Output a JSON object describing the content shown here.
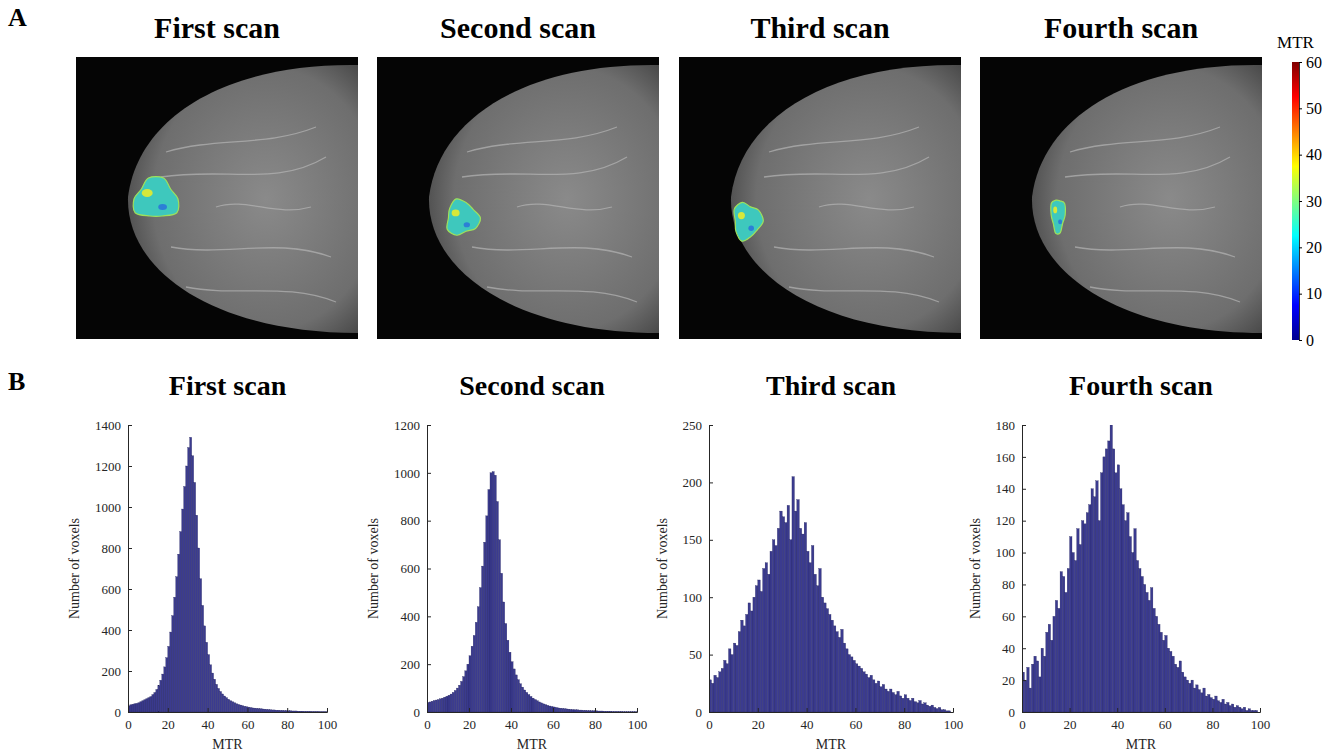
{
  "panel_a": {
    "label": "A",
    "titles": [
      "First scan",
      "Second scan",
      "Third scan",
      "Fourth scan"
    ],
    "colorbar": {
      "title": "MTR",
      "range": [
        0,
        60
      ],
      "ticks": [
        0,
        10,
        20,
        30,
        40,
        50,
        60
      ]
    }
  },
  "panel_b": {
    "label": "B"
  },
  "chart_data": [
    {
      "type": "histogram",
      "title": "First scan",
      "x_label": "MTR",
      "y_label": "Number of voxels",
      "color": "#3b3b8f",
      "xlim": [
        0,
        100
      ],
      "ylim": [
        0,
        1400
      ],
      "xticks": [
        0,
        20,
        40,
        60,
        80,
        100
      ],
      "yticks": [
        0,
        200,
        400,
        600,
        800,
        1000,
        1200,
        1400
      ],
      "bins": [
        0,
        1,
        2,
        3,
        4,
        5,
        6,
        7,
        8,
        9,
        10,
        11,
        12,
        13,
        14,
        15,
        16,
        17,
        18,
        19,
        20,
        21,
        22,
        23,
        24,
        25,
        26,
        27,
        28,
        29,
        30,
        31,
        32,
        33,
        34,
        35,
        36,
        37,
        38,
        39,
        40,
        41,
        42,
        43,
        44,
        45,
        46,
        47,
        48,
        49,
        50,
        51,
        52,
        53,
        54,
        55,
        56,
        57,
        58,
        59,
        60,
        61,
        62,
        63,
        64,
        65,
        66,
        67,
        68,
        69,
        70,
        71,
        72,
        73,
        74,
        75,
        76,
        77,
        78,
        79,
        80,
        81,
        82,
        83,
        84,
        85,
        86,
        87,
        88,
        89,
        90,
        91,
        92,
        93,
        94,
        95,
        96,
        97,
        98,
        99,
        100
      ],
      "values": [
        30,
        35,
        38,
        40,
        42,
        45,
        50,
        55,
        60,
        65,
        70,
        75,
        85,
        95,
        110,
        130,
        155,
        185,
        220,
        265,
        320,
        390,
        470,
        560,
        660,
        770,
        880,
        990,
        1100,
        1200,
        1290,
        1340,
        1250,
        1120,
        960,
        800,
        650,
        520,
        420,
        340,
        280,
        230,
        190,
        160,
        135,
        115,
        100,
        88,
        78,
        70,
        62,
        55,
        50,
        45,
        40,
        37,
        34,
        31,
        28,
        26,
        24,
        22,
        20,
        19,
        18,
        17,
        16,
        15,
        14,
        13,
        12,
        11,
        10,
        10,
        9,
        9,
        8,
        8,
        7,
        7,
        6,
        6,
        5,
        5,
        5,
        4,
        4,
        4,
        3,
        3,
        3,
        3,
        2,
        2,
        2,
        2,
        1,
        1,
        1,
        1
      ]
    },
    {
      "type": "histogram",
      "title": "Second scan",
      "x_label": "MTR",
      "y_label": "Number of voxels",
      "color": "#3b3b8f",
      "xlim": [
        0,
        100
      ],
      "ylim": [
        0,
        1200
      ],
      "xticks": [
        0,
        20,
        40,
        60,
        80,
        100
      ],
      "yticks": [
        0,
        200,
        400,
        600,
        800,
        1000,
        1200
      ],
      "bins": [
        0,
        1,
        2,
        3,
        4,
        5,
        6,
        7,
        8,
        9,
        10,
        11,
        12,
        13,
        14,
        15,
        16,
        17,
        18,
        19,
        20,
        21,
        22,
        23,
        24,
        25,
        26,
        27,
        28,
        29,
        30,
        31,
        32,
        33,
        34,
        35,
        36,
        37,
        38,
        39,
        40,
        41,
        42,
        43,
        44,
        45,
        46,
        47,
        48,
        49,
        50,
        51,
        52,
        53,
        54,
        55,
        56,
        57,
        58,
        59,
        60,
        61,
        62,
        63,
        64,
        65,
        66,
        67,
        68,
        69,
        70,
        71,
        72,
        73,
        74,
        75,
        76,
        77,
        78,
        79,
        80,
        81,
        82,
        83,
        84,
        85,
        86,
        87,
        88,
        89,
        90,
        91,
        92,
        93,
        94,
        95,
        96,
        97,
        98,
        99,
        100
      ],
      "values": [
        40,
        42,
        45,
        48,
        50,
        52,
        55,
        58,
        62,
        66,
        70,
        75,
        82,
        90,
        100,
        112,
        128,
        148,
        172,
        200,
        235,
        275,
        320,
        375,
        440,
        520,
        610,
        710,
        820,
        930,
        1000,
        1005,
        990,
        880,
        720,
        580,
        460,
        370,
        300,
        250,
        210,
        180,
        155,
        135,
        118,
        104,
        92,
        82,
        73,
        65,
        58,
        52,
        47,
        42,
        38,
        34,
        31,
        28,
        25,
        23,
        21,
        19,
        17,
        16,
        15,
        14,
        13,
        12,
        11,
        10,
        9,
        9,
        8,
        8,
        7,
        7,
        6,
        6,
        5,
        5,
        5,
        4,
        4,
        4,
        3,
        3,
        3,
        3,
        2,
        2,
        2,
        2,
        2,
        1,
        1,
        1,
        1,
        1,
        1,
        1
      ]
    },
    {
      "type": "histogram",
      "title": "Third scan",
      "x_label": "MTR",
      "y_label": "Number of voxels",
      "color": "#3b3b8f",
      "xlim": [
        0,
        100
      ],
      "ylim": [
        0,
        250
      ],
      "xticks": [
        0,
        20,
        40,
        60,
        80,
        100
      ],
      "yticks": [
        0,
        50,
        100,
        150,
        200,
        250
      ],
      "bins": [
        0,
        1,
        2,
        3,
        4,
        5,
        6,
        7,
        8,
        9,
        10,
        11,
        12,
        13,
        14,
        15,
        16,
        17,
        18,
        19,
        20,
        21,
        22,
        23,
        24,
        25,
        26,
        27,
        28,
        29,
        30,
        31,
        32,
        33,
        34,
        35,
        36,
        37,
        38,
        39,
        40,
        41,
        42,
        43,
        44,
        45,
        46,
        47,
        48,
        49,
        50,
        51,
        52,
        53,
        54,
        55,
        56,
        57,
        58,
        59,
        60,
        61,
        62,
        63,
        64,
        65,
        66,
        67,
        68,
        69,
        70,
        71,
        72,
        73,
        74,
        75,
        76,
        77,
        78,
        79,
        80,
        81,
        82,
        83,
        84,
        85,
        86,
        87,
        88,
        89,
        90,
        91,
        92,
        93,
        94,
        95,
        96,
        97,
        98,
        99,
        100
      ],
      "values": [
        28,
        25,
        32,
        30,
        35,
        38,
        45,
        42,
        55,
        50,
        60,
        58,
        70,
        80,
        75,
        85,
        95,
        88,
        100,
        110,
        115,
        105,
        125,
        130,
        120,
        140,
        150,
        145,
        160,
        175,
        170,
        165,
        180,
        150,
        205,
        175,
        185,
        160,
        155,
        165,
        140,
        130,
        145,
        120,
        110,
        125,
        100,
        95,
        90,
        85,
        80,
        75,
        70,
        65,
        72,
        60,
        55,
        50,
        48,
        45,
        42,
        40,
        38,
        35,
        33,
        30,
        32,
        28,
        25,
        27,
        22,
        24,
        20,
        18,
        20,
        17,
        15,
        18,
        14,
        12,
        15,
        12,
        10,
        12,
        9,
        8,
        10,
        7,
        8,
        6,
        5,
        6,
        4,
        3,
        4,
        2,
        2,
        1,
        1,
        0
      ]
    },
    {
      "type": "histogram",
      "title": "Fourth scan",
      "x_label": "MTR",
      "y_label": "Number of voxels",
      "color": "#3b3b8f",
      "xlim": [
        0,
        100
      ],
      "ylim": [
        0,
        180
      ],
      "xticks": [
        0,
        20,
        40,
        60,
        80,
        100
      ],
      "yticks": [
        0,
        20,
        40,
        60,
        80,
        100,
        120,
        140,
        160,
        180
      ],
      "bins": [
        0,
        1,
        2,
        3,
        4,
        5,
        6,
        7,
        8,
        9,
        10,
        11,
        12,
        13,
        14,
        15,
        16,
        17,
        18,
        19,
        20,
        21,
        22,
        23,
        24,
        25,
        26,
        27,
        28,
        29,
        30,
        31,
        32,
        33,
        34,
        35,
        36,
        37,
        38,
        39,
        40,
        41,
        42,
        43,
        44,
        45,
        46,
        47,
        48,
        49,
        50,
        51,
        52,
        53,
        54,
        55,
        56,
        57,
        58,
        59,
        60,
        61,
        62,
        63,
        64,
        65,
        66,
        67,
        68,
        69,
        70,
        71,
        72,
        73,
        74,
        75,
        76,
        77,
        78,
        79,
        80,
        81,
        82,
        83,
        84,
        85,
        86,
        87,
        88,
        89,
        90,
        91,
        92,
        93,
        94,
        95,
        96,
        97,
        98,
        99,
        100
      ],
      "values": [
        25,
        20,
        28,
        15,
        30,
        35,
        32,
        22,
        40,
        35,
        50,
        55,
        45,
        60,
        70,
        65,
        88,
        85,
        75,
        90,
        110,
        100,
        95,
        115,
        105,
        120,
        118,
        125,
        130,
        140,
        135,
        145,
        120,
        150,
        160,
        165,
        170,
        180,
        165,
        150,
        155,
        140,
        130,
        120,
        125,
        110,
        100,
        115,
        95,
        90,
        85,
        80,
        75,
        70,
        78,
        65,
        60,
        55,
        50,
        45,
        48,
        40,
        38,
        35,
        30,
        28,
        32,
        25,
        22,
        20,
        18,
        20,
        15,
        17,
        14,
        12,
        15,
        10,
        11,
        9,
        8,
        10,
        7,
        6,
        8,
        5,
        6,
        4,
        5,
        3,
        4,
        3,
        2,
        3,
        1,
        2,
        1,
        1,
        1,
        0
      ]
    }
  ]
}
